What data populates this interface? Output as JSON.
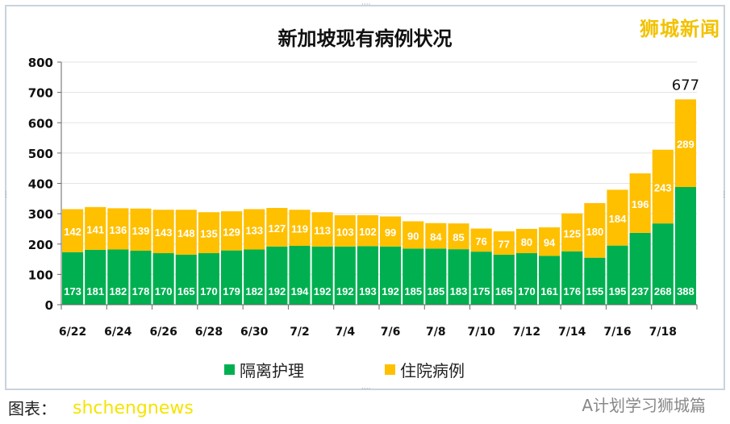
{
  "logo_text": "狮城新闻",
  "watermark": "A计划学习狮城篇",
  "site_watermark": "shchengnews",
  "caption": "图表：",
  "chart_data": {
    "type": "bar",
    "stacked": true,
    "title": "新加坡现有病例状况",
    "xlabel": "",
    "ylabel": "",
    "ylim": [
      0,
      800
    ],
    "yticks": [
      0,
      100,
      200,
      300,
      400,
      500,
      600,
      700,
      800
    ],
    "grid": true,
    "legend_position": "bottom",
    "categories": [
      "6/22",
      "6/23",
      "6/24",
      "6/25",
      "6/26",
      "6/27",
      "6/28",
      "6/29",
      "6/30",
      "7/1",
      "7/2",
      "7/3",
      "7/4",
      "7/5",
      "7/6",
      "7/7",
      "7/8",
      "7/9",
      "7/10",
      "7/11",
      "7/12",
      "7/13",
      "7/14",
      "7/15",
      "7/16",
      "7/17",
      "7/18",
      "7/19"
    ],
    "xtick_labels": [
      "6/22",
      "6/24",
      "6/26",
      "6/28",
      "6/30",
      "7/2",
      "7/4",
      "7/6",
      "7/8",
      "7/10",
      "7/12",
      "7/14",
      "7/16",
      "7/18"
    ],
    "series": [
      {
        "name": "隔离护理",
        "color": "#00b050",
        "values": [
          173,
          181,
          182,
          178,
          170,
          165,
          170,
          179,
          182,
          192,
          194,
          192,
          192,
          193,
          192,
          185,
          185,
          183,
          175,
          165,
          170,
          161,
          176,
          155,
          195,
          237,
          268,
          388
        ]
      },
      {
        "name": "住院病例",
        "color": "#ffc000",
        "values": [
          142,
          141,
          136,
          139,
          143,
          148,
          135,
          129,
          133,
          127,
          119,
          113,
          103,
          102,
          99,
          90,
          84,
          85,
          76,
          77,
          80,
          94,
          125,
          180,
          184,
          196,
          243,
          289
        ]
      }
    ],
    "annotations": [
      {
        "category": "7/19",
        "text": "677"
      }
    ]
  }
}
